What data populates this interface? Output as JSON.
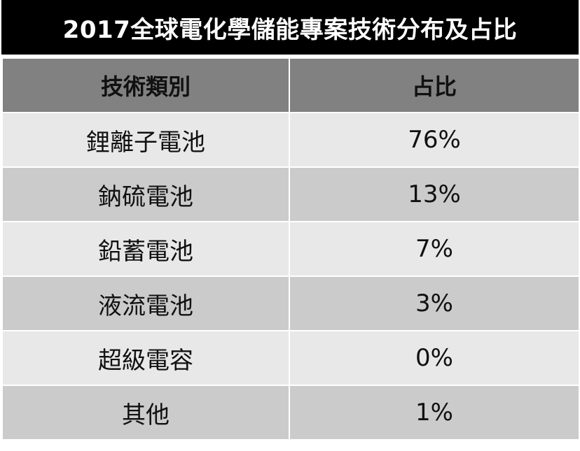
{
  "title": "2017全球電化學儲能專案技術分布及占比",
  "table": {
    "headers": [
      "技術類別",
      "占比"
    ],
    "rows": [
      {
        "category": "鋰離子電池",
        "share": "76%"
      },
      {
        "category": "鈉硫電池",
        "share": "13%"
      },
      {
        "category": "鉛蓄電池",
        "share": "7%"
      },
      {
        "category": "液流電池",
        "share": "3%"
      },
      {
        "category": "超級電容",
        "share": "0%"
      },
      {
        "category": "其他",
        "share": "1%"
      }
    ]
  },
  "colors": {
    "title_background": "#000000",
    "title_text": "#ffffff",
    "header_background": "#818181",
    "row_odd_background": "#e8e8e8",
    "row_even_background": "#cbcbcb"
  }
}
